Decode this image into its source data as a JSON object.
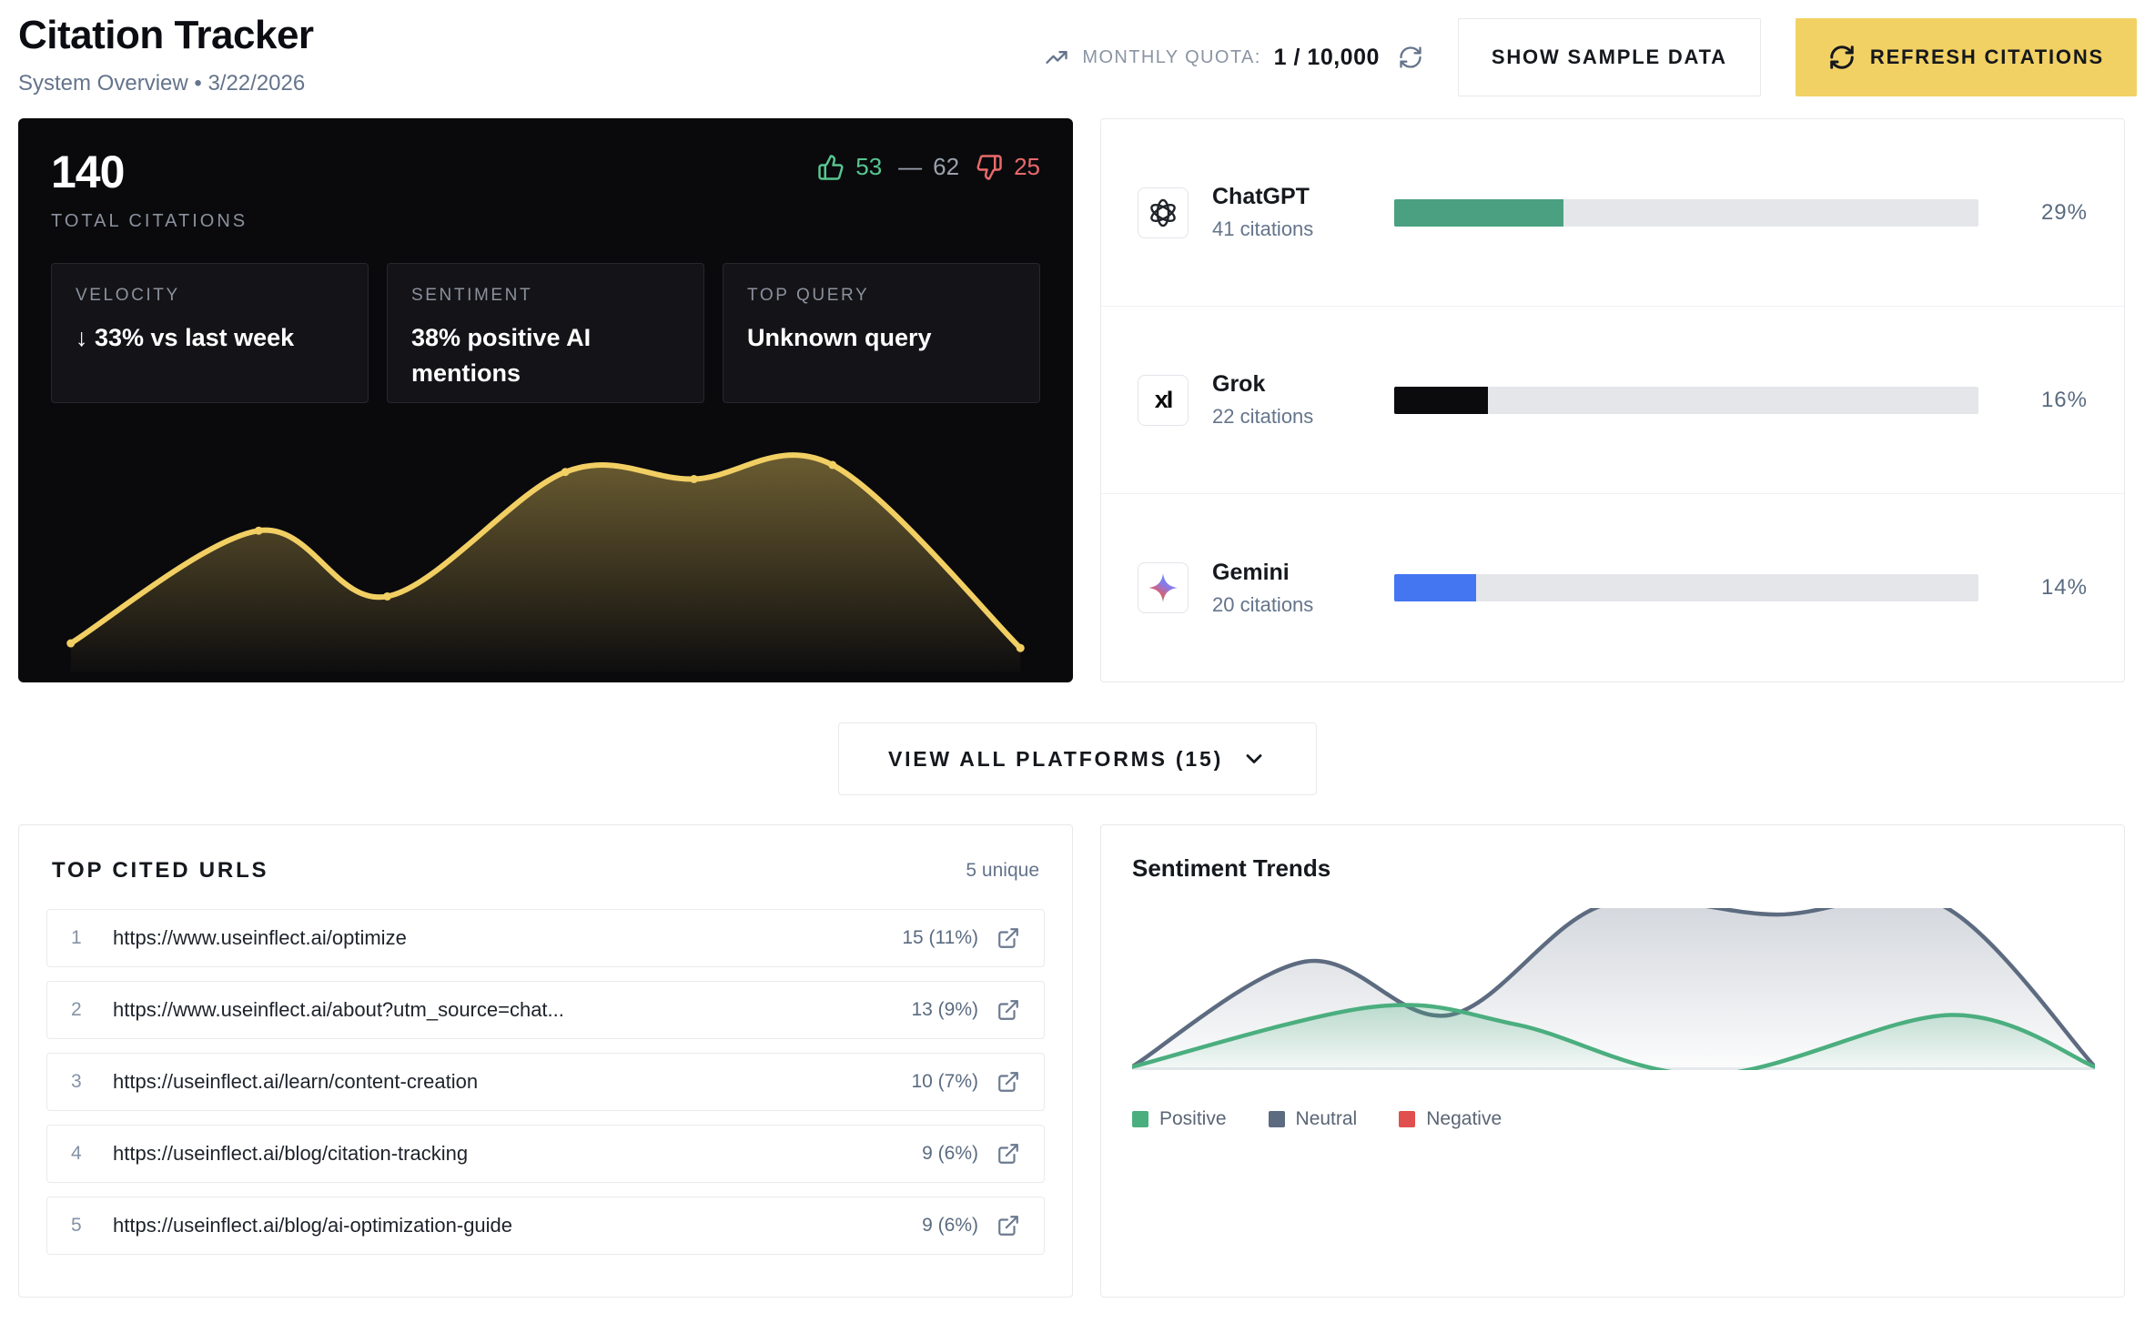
{
  "header": {
    "title": "Citation Tracker",
    "subtitle": "System Overview • 3/22/2026",
    "quota_label": "MONTHLY QUOTA:",
    "quota_value": "1 / 10,000",
    "show_sample_label": "SHOW SAMPLE DATA",
    "refresh_label": "REFRESH CITATIONS"
  },
  "overview": {
    "total": "140",
    "total_label": "TOTAL CITATIONS",
    "thumbs_up_count": "53",
    "neutral_dash": "—",
    "neutral_count": "62",
    "thumbs_down_count": "25",
    "stats": [
      {
        "label": "VELOCITY",
        "value": "↓ 33% vs last week"
      },
      {
        "label": "SENTIMENT",
        "value": "38% positive AI mentions"
      },
      {
        "label": "TOP QUERY",
        "value": "Unknown query"
      }
    ]
  },
  "platforms": {
    "items": [
      {
        "name": "ChatGPT",
        "citations": "41 citations",
        "pct": "29%",
        "pct_num": 29,
        "color": "#4BA081"
      },
      {
        "name": "Grok",
        "citations": "22 citations",
        "pct": "16%",
        "pct_num": 16,
        "color": "#0B0B0D"
      },
      {
        "name": "Gemini",
        "citations": "20 citations",
        "pct": "14%",
        "pct_num": 14,
        "color": "#4476F2"
      }
    ],
    "view_all_label": "VIEW ALL PLATFORMS (15)"
  },
  "top_urls": {
    "title": "TOP CITED URLS",
    "unique_label": "5 unique",
    "rows": [
      {
        "rank": "1",
        "url": "https://www.useinflect.ai/optimize",
        "count": "15 (11%)"
      },
      {
        "rank": "2",
        "url": "https://www.useinflect.ai/about?utm_source=chat...",
        "count": "13 (9%)"
      },
      {
        "rank": "3",
        "url": "https://useinflect.ai/learn/content-creation",
        "count": "10 (7%)"
      },
      {
        "rank": "4",
        "url": "https://useinflect.ai/blog/citation-tracking",
        "count": "9 (6%)"
      },
      {
        "rank": "5",
        "url": "https://useinflect.ai/blog/ai-optimization-guide",
        "count": "9 (6%)"
      }
    ]
  },
  "sentiment": {
    "title": "Sentiment Trends",
    "legend": [
      {
        "label": "Positive",
        "color": "#4BAE7F"
      },
      {
        "label": "Neutral",
        "color": "#5D6B80"
      },
      {
        "label": "Negative",
        "color": "#E0504F"
      }
    ]
  },
  "colors": {
    "accent_yellow": "#F2D164",
    "positive_green": "#4BA081",
    "neutral_slate": "#5D6B80",
    "negative_red": "#E0504F",
    "gemini_blue": "#4476F2",
    "gold_line": "#F2CF63",
    "dark_card_bg": "#0A0A0D"
  },
  "chart_data": [
    {
      "id": "citations-sparkline",
      "type": "area",
      "title": "",
      "xlabel": "",
      "ylabel": "",
      "grid": false,
      "series": [
        {
          "name": "total citations trend",
          "color": "#F2CF63",
          "stroke_width": 6,
          "fill_alpha": 0.42,
          "markers": true,
          "points": [
            [
              2,
              12
            ],
            [
              21,
              60
            ],
            [
              34,
              32
            ],
            [
              52,
              85
            ],
            [
              65,
              82
            ],
            [
              79,
              88
            ],
            [
              98,
              10
            ]
          ]
        }
      ]
    },
    {
      "id": "sentiment-trends",
      "type": "area",
      "title": "Sentiment Trends",
      "xlabel": "",
      "ylabel": "",
      "grid": false,
      "legend_position": "bottom",
      "baseline_color": "#E9ECF0",
      "series": [
        {
          "name": "Neutral",
          "color": "#5D6B80",
          "stroke_width": 4.5,
          "fill_alpha": 0.28,
          "points": [
            [
              0,
              2
            ],
            [
              18,
              67
            ],
            [
              33,
              34
            ],
            [
              49,
              102
            ],
            [
              67,
              96
            ],
            [
              84,
              102
            ],
            [
              100,
              2
            ]
          ]
        },
        {
          "name": "Positive",
          "color": "#4BAE7F",
          "stroke_width": 4.5,
          "fill_alpha": 0.3,
          "points": [
            [
              0,
              2
            ],
            [
              25,
              39
            ],
            [
              40,
              28
            ],
            [
              60,
              -3
            ],
            [
              85,
              34
            ],
            [
              100,
              2
            ]
          ]
        },
        {
          "name": "Negative",
          "color": "#E0504F",
          "stroke_width": 4.5,
          "fill_alpha": 0.3,
          "points": []
        }
      ]
    }
  ]
}
